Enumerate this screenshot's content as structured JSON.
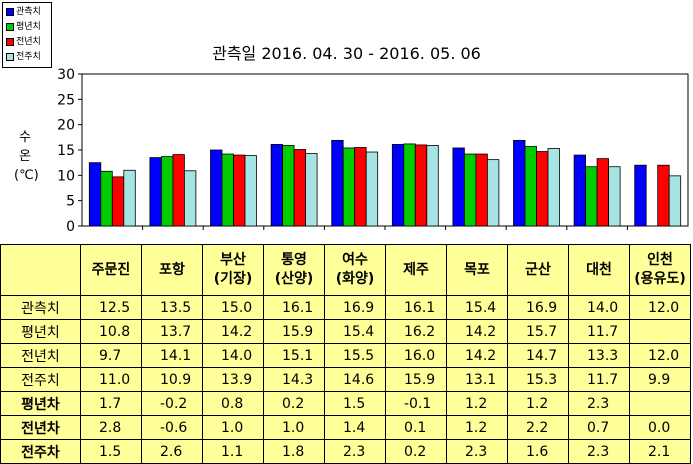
{
  "chart_data": {
    "type": "bar",
    "title": "관측일 2016. 04. 30 - 2016. 05. 06",
    "ylabel": "수\n온\n(℃)",
    "ylim": [
      0,
      30
    ],
    "yticks": [
      0,
      5,
      10,
      15,
      20,
      25,
      30
    ],
    "categories": [
      "주문진",
      "포항",
      "부산(기장)",
      "통영(산양)",
      "여수(화양)",
      "제주",
      "목포",
      "군산",
      "대천",
      "인천(용유도)"
    ],
    "series": [
      {
        "name": "관측치",
        "color": "#0000ff",
        "values": [
          12.5,
          13.5,
          15.0,
          16.1,
          16.9,
          16.1,
          15.4,
          16.9,
          14.0,
          12.0
        ]
      },
      {
        "name": "평년치",
        "color": "#00cc00",
        "values": [
          10.8,
          13.7,
          14.2,
          15.9,
          15.4,
          16.2,
          14.2,
          15.7,
          11.7,
          null
        ]
      },
      {
        "name": "전년치",
        "color": "#ff0000",
        "values": [
          9.7,
          14.1,
          14.0,
          15.1,
          15.5,
          16.0,
          14.2,
          14.7,
          13.3,
          12.0
        ]
      },
      {
        "name": "전주치",
        "color": "#a6e3e3",
        "values": [
          11.0,
          10.9,
          13.9,
          14.3,
          14.6,
          15.9,
          13.1,
          15.3,
          11.7,
          9.9
        ]
      }
    ],
    "legend_position": "top-left",
    "grid": false
  },
  "table": {
    "header": [
      [
        "주문진"
      ],
      [
        "포항"
      ],
      [
        "부산",
        "(기장)"
      ],
      [
        "통영",
        "(산양)"
      ],
      [
        "여수",
        "(화양)"
      ],
      [
        "제주"
      ],
      [
        "목포"
      ],
      [
        "군산"
      ],
      [
        "대천"
      ],
      [
        "인천",
        "(용유도)"
      ]
    ],
    "rows": [
      {
        "label": "관측치",
        "bold": false,
        "values": [
          "12.5",
          "13.5",
          "15.0",
          "16.1",
          "16.9",
          "16.1",
          "15.4",
          "16.9",
          "14.0",
          "12.0"
        ]
      },
      {
        "label": "평년치",
        "bold": false,
        "values": [
          "10.8",
          "13.7",
          "14.2",
          "15.9",
          "15.4",
          "16.2",
          "14.2",
          "15.7",
          "11.7",
          ""
        ]
      },
      {
        "label": "전년치",
        "bold": false,
        "values": [
          "9.7",
          "14.1",
          "14.0",
          "15.1",
          "15.5",
          "16.0",
          "14.2",
          "14.7",
          "13.3",
          "12.0"
        ]
      },
      {
        "label": "전주치",
        "bold": false,
        "values": [
          "11.0",
          "10.9",
          "13.9",
          "14.3",
          "14.6",
          "15.9",
          "13.1",
          "15.3",
          "11.7",
          "9.9"
        ]
      },
      {
        "label": "평년차",
        "bold": true,
        "values": [
          "1.7",
          "-0.2",
          "0.8",
          "0.2",
          "1.5",
          "-0.1",
          "1.2",
          "1.2",
          "2.3",
          ""
        ]
      },
      {
        "label": "전년차",
        "bold": true,
        "values": [
          "2.8",
          "-0.6",
          "1.0",
          "1.0",
          "1.4",
          "0.1",
          "1.2",
          "2.2",
          "0.7",
          "0.0"
        ]
      },
      {
        "label": "전주차",
        "bold": true,
        "values": [
          "1.5",
          "2.6",
          "1.1",
          "1.8",
          "2.3",
          "0.2",
          "2.3",
          "1.6",
          "2.3",
          "2.1"
        ]
      }
    ]
  }
}
